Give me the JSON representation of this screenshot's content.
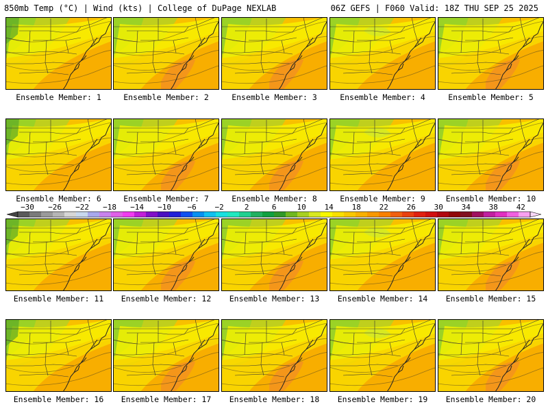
{
  "header": {
    "title_left": "850mb Temp (°C) | Wind (kts) | College of DuPage NEXLAB",
    "title_right": "06Z GEFS | F060 Valid: 18Z THU SEP 25 2025"
  },
  "panels": [
    {
      "label": "Ensemble Member: 1"
    },
    {
      "label": "Ensemble Member: 2"
    },
    {
      "label": "Ensemble Member: 3"
    },
    {
      "label": "Ensemble Member: 4"
    },
    {
      "label": "Ensemble Member: 5"
    },
    {
      "label": "Ensemble Member: 6"
    },
    {
      "label": "Ensemble Member: 7"
    },
    {
      "label": "Ensemble Member: 8"
    },
    {
      "label": "Ensemble Member: 9"
    },
    {
      "label": "Ensemble Member: 10"
    },
    {
      "label": "Ensemble Member: 11"
    },
    {
      "label": "Ensemble Member: 12"
    },
    {
      "label": "Ensemble Member: 13"
    },
    {
      "label": "Ensemble Member: 14"
    },
    {
      "label": "Ensemble Member: 15"
    },
    {
      "label": "Ensemble Member: 16"
    },
    {
      "label": "Ensemble Member: 17"
    },
    {
      "label": "Ensemble Member: 18"
    },
    {
      "label": "Ensemble Member: 19"
    },
    {
      "label": "Ensemble Member: 20"
    }
  ],
  "colorbar": {
    "tick_labels": [
      "−30",
      "−26",
      "−22",
      "−18",
      "−14",
      "−10",
      "−6",
      "−2",
      "2",
      "6",
      "10",
      "14",
      "18",
      "22",
      "26",
      "30",
      "34",
      "38",
      "42"
    ],
    "colors": [
      "#5a5a5a",
      "#7a7a7a",
      "#9a9a9a",
      "#b5b5b5",
      "#d6d6d6",
      "#c8d8ee",
      "#a8a8ec",
      "#c882ec",
      "#e060e8",
      "#f03cf0",
      "#c020d8",
      "#8010c8",
      "#4a10c0",
      "#2020d8",
      "#1050f0",
      "#0890f0",
      "#10c0f0",
      "#18e0e0",
      "#20e8c0",
      "#20d090",
      "#20b060",
      "#10a040",
      "#309828",
      "#70b820",
      "#a8d020",
      "#d8e820",
      "#f8f800",
      "#f8e000",
      "#f8c800",
      "#f8b000",
      "#f89800",
      "#f88000",
      "#f06010",
      "#e84010",
      "#e02010",
      "#d01010",
      "#b00810",
      "#900808",
      "#801020",
      "#a01060",
      "#c020a0",
      "#e030c0",
      "#f060e0",
      "#f8a0f0"
    ]
  },
  "map_colors": {
    "green": "#7ec81e",
    "light_green": "#a8d62a",
    "yellow_green": "#d2e828",
    "yellow": "#f8f200",
    "gold": "#f8d600",
    "light_orange": "#f8c000",
    "orange": "#f8ac00",
    "dark_orange": "#f29020"
  }
}
